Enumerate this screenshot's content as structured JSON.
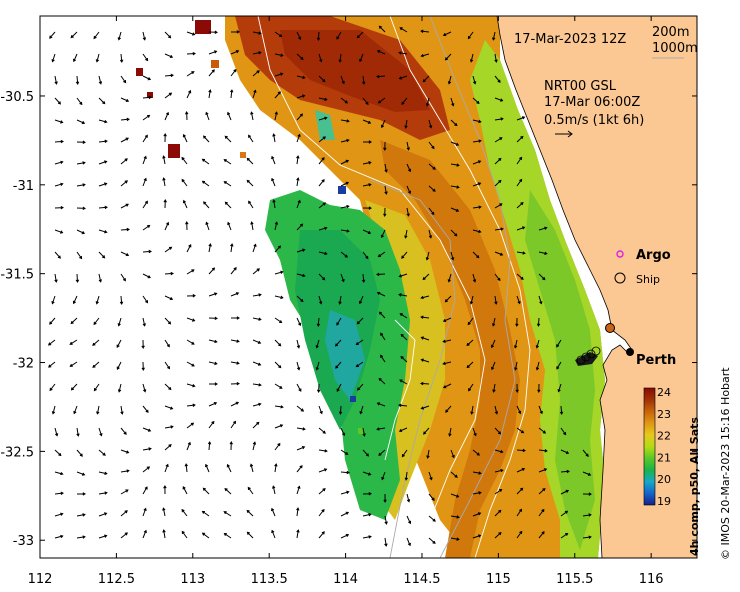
{
  "map": {
    "timestamp": "17-Mar-2023 12Z",
    "depth_contours": [
      "200m",
      "1000m"
    ],
    "current_title": "NRT00 GSL",
    "current_time": "17-Mar 06:00Z",
    "current_scale": "0.5m/s (1kt 6h)",
    "legend": {
      "argo": "Argo",
      "ship": "Ship"
    },
    "place_label": "Perth",
    "credit": "© IMOS 20-Mar-2023 15:16 Hobart",
    "x_ticks": [
      "112",
      "112.5",
      "113",
      "113.5",
      "114",
      "114.5",
      "115",
      "115.5",
      "116"
    ],
    "y_ticks": [
      "-30.5",
      "-31",
      "-31.5",
      "-32",
      "-32.5",
      "-33"
    ],
    "x_tick_values": [
      112,
      112.5,
      113,
      113.5,
      114,
      114.5,
      115,
      115.5,
      116
    ],
    "y_tick_values": [
      -30.5,
      -31,
      -31.5,
      -32,
      -32.5,
      -33
    ],
    "x_range": [
      112,
      116.3
    ],
    "y_range": [
      -30.05,
      -33.1
    ]
  },
  "colorbar": {
    "title": "4h comp, p50, All Sats",
    "ticks": [
      "24",
      "23",
      "22",
      "21",
      "20",
      "19"
    ],
    "tick_values": [
      24,
      23,
      22,
      21,
      20,
      19
    ],
    "range": [
      19,
      24
    ],
    "colors": [
      "#1a1e8a",
      "#1464c8",
      "#18a8c8",
      "#1ab448",
      "#5ac828",
      "#b4dc14",
      "#e6c81e",
      "#e09614",
      "#c8640a",
      "#a03205",
      "#8c0a05"
    ]
  }
}
